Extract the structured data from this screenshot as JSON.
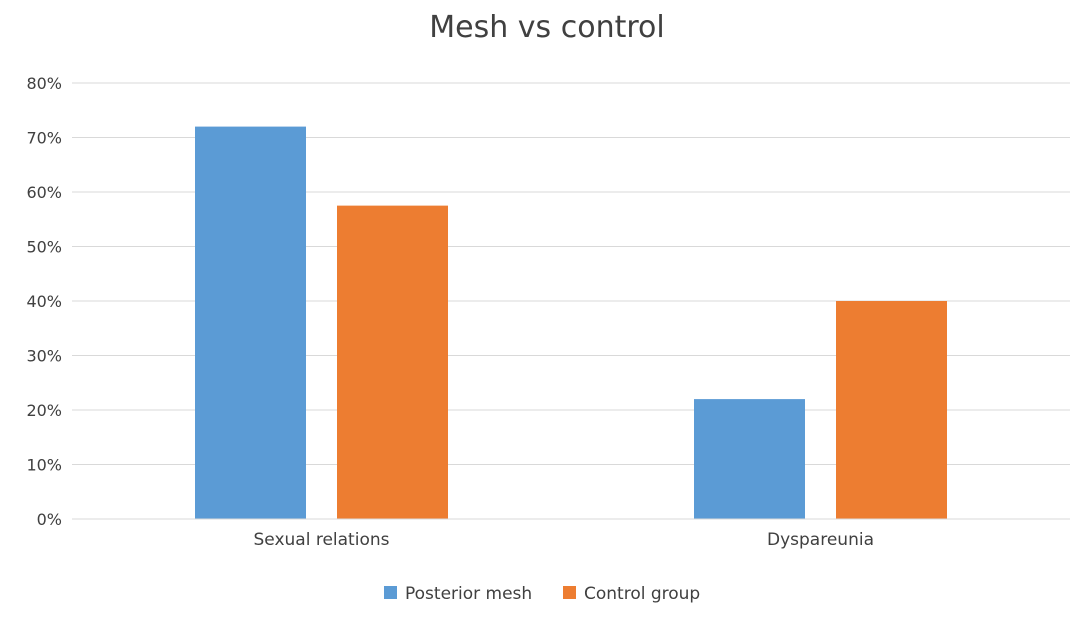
{
  "chart_data": {
    "type": "bar",
    "title": "Mesh vs control",
    "categories": [
      "Sexual relations",
      "Dyspareunia"
    ],
    "series": [
      {
        "name": "Posterior mesh",
        "values": [
          72,
          22
        ],
        "color": "#5b9bd5"
      },
      {
        "name": "Control group",
        "values": [
          57.5,
          40
        ],
        "color": "#ed7d31"
      }
    ],
    "ylim": [
      0,
      80
    ],
    "yticks": [
      0,
      10,
      20,
      30,
      40,
      50,
      60,
      70,
      80
    ],
    "ytick_labels": [
      "0%",
      "10%",
      "20%",
      "30%",
      "40%",
      "50%",
      "60%",
      "70%",
      "80%"
    ],
    "grid": true,
    "legend_position": "bottom"
  }
}
